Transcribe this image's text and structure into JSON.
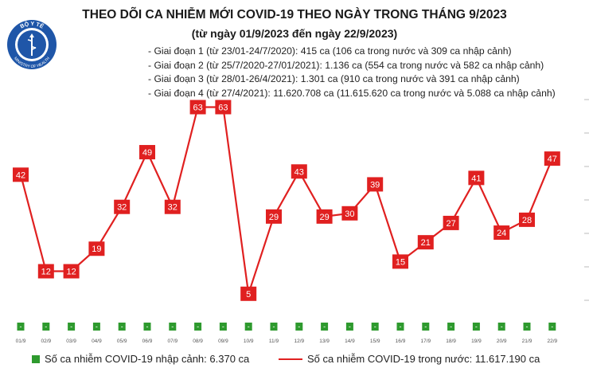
{
  "header": {
    "title": "THEO DÕI CA NHIỄM MỚI COVID-19 THEO NGÀY TRONG THÁNG 9/2023",
    "subtitle": "(từ ngày 01/9/2023 đến ngày 22/9/2023)",
    "logo_top_text": "BỘ Y TẾ",
    "logo_bottom_text": "MINISTRY OF HEALTH"
  },
  "phases": [
    "- Giai đoạn 1 (từ 23/01-24/7/2020): 415 ca (106 ca trong nước và 309 ca nhập cảnh)",
    "- Giai đoạn 2 (từ 25/7/2020-27/01/2021): 1.136 ca (554 ca trong nước và 582 ca nhập cảnh)",
    "- Giai đoạn 3 (từ 28/01-26/4/2021): 1.301 ca (910 ca trong nước và 391 ca nhập cảnh)",
    "- Giai đoạn 4 (từ 27/4/2021): 11.620.708 ca (11.615.620 ca trong nước và 5.088 ca nhập cảnh)"
  ],
  "legend": {
    "imported": "Số ca nhiễm COVID-19 nhập cảnh: 6.370 ca",
    "domestic": "Số ca nhiễm COVID-19 trong nước: 11.617.190 ca"
  },
  "colors": {
    "domestic_line": "#e02020",
    "imported_bar": "#2e9a2e"
  },
  "chart_data": {
    "type": "line",
    "x": [
      "01/9",
      "02/9",
      "03/9",
      "04/9",
      "05/9",
      "06/9",
      "07/9",
      "08/9",
      "09/9",
      "10/9",
      "11/9",
      "12/9",
      "13/9",
      "14/9",
      "15/9",
      "16/9",
      "17/9",
      "18/9",
      "19/9",
      "20/9",
      "21/9",
      "22/9"
    ],
    "series": [
      {
        "name": "Số ca nhiễm COVID-19 trong nước",
        "style": "line",
        "values": [
          42,
          12,
          12,
          19,
          32,
          49,
          32,
          63,
          63,
          5,
          29,
          43,
          29,
          30,
          39,
          15,
          21,
          27,
          41,
          24,
          28,
          47
        ]
      },
      {
        "name": "Số ca nhiễm COVID-19 nhập cảnh",
        "style": "bar",
        "values": [
          0,
          0,
          0,
          0,
          0,
          0,
          0,
          0,
          0,
          0,
          0,
          0,
          0,
          0,
          0,
          0,
          0,
          0,
          0,
          0,
          0,
          0
        ],
        "label": "-"
      }
    ],
    "y_axis_visible": false,
    "grid": false,
    "legend_position": "bottom"
  }
}
